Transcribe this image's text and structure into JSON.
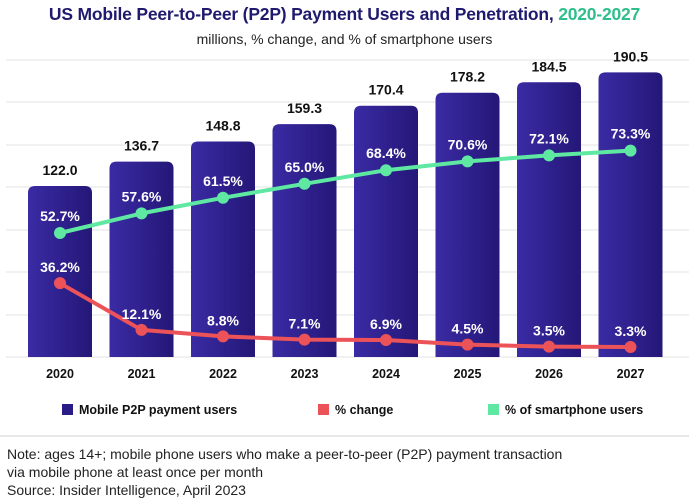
{
  "title_main": "US Mobile Peer-to-Peer (P2P) Payment Users and Penetration,",
  "title_years": "2020-2027",
  "subtitle": "millions, % change, and % of smartphone users",
  "colors": {
    "bar": "#2a1c86",
    "bar_light": "#3a2ba4",
    "change_line": "#ec5358",
    "penetration_line": "#5ee8a2",
    "title": "#1f1a6e",
    "title_accent": "#2fbf8c"
  },
  "chart_data": {
    "type": "bar",
    "categories": [
      "2020",
      "2021",
      "2022",
      "2023",
      "2024",
      "2025",
      "2026",
      "2027"
    ],
    "series": [
      {
        "name": "Mobile P2P payment users",
        "type": "bar",
        "values": [
          122.0,
          136.7,
          148.8,
          159.3,
          170.4,
          178.2,
          184.5,
          190.5
        ],
        "labels": [
          "122.0",
          "136.7",
          "148.8",
          "159.3",
          "170.4",
          "178.2",
          "184.5",
          "190.5"
        ]
      },
      {
        "name": "% change",
        "type": "line",
        "values": [
          36.2,
          12.1,
          8.8,
          7.1,
          6.9,
          4.5,
          3.5,
          3.3
        ],
        "labels": [
          "36.2%",
          "12.1%",
          "8.8%",
          "7.1%",
          "6.9%",
          "4.5%",
          "3.5%",
          "3.3%"
        ]
      },
      {
        "name": "% of smartphone users",
        "type": "line",
        "values": [
          52.7,
          57.6,
          61.5,
          65.0,
          68.4,
          70.6,
          72.1,
          73.3
        ],
        "labels": [
          "52.7%",
          "57.6%",
          "61.5%",
          "65.0%",
          "68.4%",
          "70.6%",
          "72.1%",
          "73.3%"
        ]
      }
    ],
    "legend_position": "bottom",
    "grid": true
  },
  "legend": {
    "items": [
      "Mobile P2P payment users",
      "% change",
      "% of smartphone users"
    ]
  },
  "note": {
    "line1": "Note: ages 14+; mobile phone users who make a peer-to-peer (P2P) payment transaction",
    "line2": "via mobile phone at least once per month",
    "line3": "Source: Insider Intelligence, April 2023"
  }
}
